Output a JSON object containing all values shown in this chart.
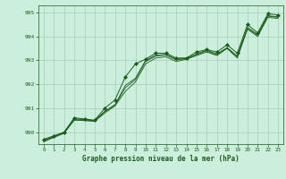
{
  "xlabel": "Graphe pression niveau de la mer (hPa)",
  "background_color": "#cceedd",
  "grid_color": "#aaccbb",
  "line_color": "#1a5c1a",
  "marker_color": "#1a5c1a",
  "xlim": [
    -0.5,
    23.5
  ],
  "ylim": [
    989.5,
    995.3
  ],
  "yticks": [
    990,
    991,
    992,
    993,
    994,
    995
  ],
  "xticks": [
    0,
    1,
    2,
    3,
    4,
    5,
    6,
    7,
    8,
    9,
    10,
    11,
    12,
    13,
    14,
    15,
    16,
    17,
    18,
    19,
    20,
    21,
    22,
    23
  ],
  "series": [
    [
      989.7,
      989.85,
      990.0,
      990.6,
      990.55,
      990.5,
      991.0,
      991.35,
      992.3,
      992.85,
      993.05,
      993.3,
      993.3,
      993.1,
      993.1,
      993.35,
      993.45,
      993.35,
      993.65,
      993.3,
      994.5,
      994.15,
      994.95,
      994.9
    ],
    [
      989.65,
      989.82,
      989.97,
      990.5,
      990.5,
      990.45,
      990.8,
      991.1,
      991.7,
      992.1,
      992.85,
      993.1,
      993.15,
      992.95,
      993.05,
      993.2,
      993.35,
      993.2,
      993.5,
      993.1,
      994.3,
      994.0,
      994.8,
      994.75
    ],
    [
      989.6,
      989.78,
      989.95,
      990.52,
      990.48,
      990.47,
      990.88,
      991.15,
      991.95,
      992.25,
      993.0,
      993.22,
      993.25,
      993.05,
      993.08,
      993.27,
      993.42,
      993.27,
      993.53,
      993.18,
      994.38,
      994.08,
      994.87,
      994.82
    ],
    [
      989.63,
      989.8,
      989.98,
      990.55,
      990.52,
      990.47,
      990.85,
      991.12,
      991.85,
      992.2,
      992.95,
      993.18,
      993.22,
      993.02,
      993.07,
      993.24,
      993.4,
      993.24,
      993.52,
      993.15,
      994.35,
      994.05,
      994.85,
      994.8
    ]
  ]
}
